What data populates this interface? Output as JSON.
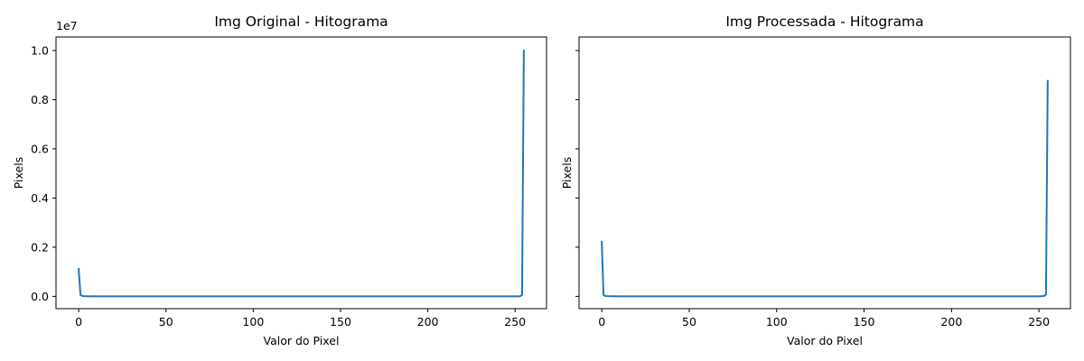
{
  "chart_data": [
    {
      "type": "line",
      "title": "Img Original - Hitograma",
      "xlabel": "Valor do Pixel",
      "ylabel": "Pixels",
      "y_offset_label": "1e7",
      "xlim": [
        -13,
        268
      ],
      "ylim": [
        -0.05,
        1.055
      ],
      "y_scale": "×1e7",
      "xticks": [
        0,
        50,
        100,
        150,
        200,
        250
      ],
      "xtick_labels": [
        "0",
        "50",
        "100",
        "150",
        "200",
        "250"
      ],
      "yticks": [
        0.0,
        0.2,
        0.4,
        0.6,
        0.8,
        1.0
      ],
      "ytick_labels": [
        "0.0",
        "0.2",
        "0.4",
        "0.6",
        "0.8",
        "1.0"
      ],
      "show_ytick_labels": true,
      "grid": false,
      "color": "#1f77b4",
      "series": [
        {
          "x": [
            0,
            1,
            2,
            3,
            5,
            10,
            50,
            100,
            150,
            200,
            250,
            252,
            253,
            254,
            255
          ],
          "y": [
            0.112,
            0.006,
            0.002,
            0.001,
            0.0005,
            0.0,
            0.0,
            0.0,
            0.0,
            0.0,
            0.0,
            0.0,
            0.001,
            0.006,
            1.0
          ]
        }
      ]
    },
    {
      "type": "line",
      "title": "Img Processada - Hitograma",
      "xlabel": "Valor do Pixel",
      "ylabel": "Pixels",
      "xlim": [
        -13,
        268
      ],
      "ylim": [
        -0.05,
        1.055
      ],
      "y_scale": "×1e7",
      "xticks": [
        0,
        50,
        100,
        150,
        200,
        250
      ],
      "xtick_labels": [
        "0",
        "50",
        "100",
        "150",
        "200",
        "250"
      ],
      "yticks": [
        0.0,
        0.2,
        0.4,
        0.6,
        0.8,
        1.0
      ],
      "show_ytick_labels": false,
      "grid": false,
      "color": "#1f77b4",
      "series": [
        {
          "x": [
            0,
            1,
            2,
            3,
            5,
            10,
            50,
            100,
            150,
            200,
            250,
            252,
            253,
            254,
            255
          ],
          "y": [
            0.223,
            0.006,
            0.002,
            0.001,
            0.0005,
            0.0,
            0.0,
            0.0,
            0.0,
            0.0,
            0.0,
            0.001,
            0.002,
            0.008,
            0.877
          ]
        }
      ]
    }
  ]
}
